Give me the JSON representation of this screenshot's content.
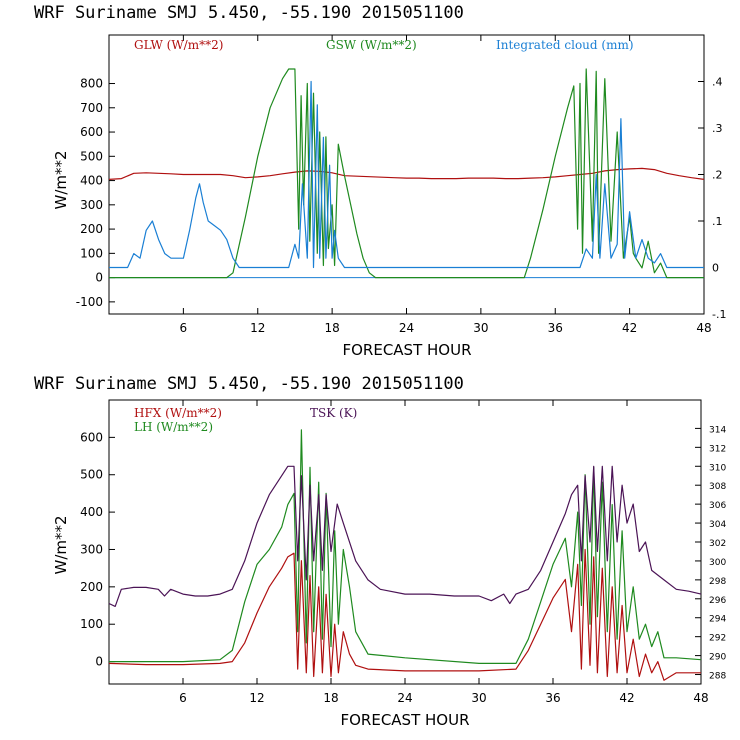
{
  "colors": {
    "red": "#b01010",
    "green": "#1f8a1f",
    "blue": "#1a7fd4",
    "purple": "#4b1456",
    "axis": "#000000"
  },
  "chart_data": [
    {
      "type": "line",
      "title": "WRF  Suriname SMJ   5.450, -55.190  2015051100",
      "xlabel": "FORECAST HOUR",
      "ylabel": "W/m**2",
      "xlim": [
        0,
        48
      ],
      "ylim": [
        -150,
        1000
      ],
      "y2lim": [
        -0.1,
        0.5
      ],
      "xticks": [
        6,
        12,
        18,
        24,
        30,
        36,
        42,
        48
      ],
      "yticks": [
        -100,
        0,
        100,
        200,
        300,
        400,
        500,
        600,
        700,
        800
      ],
      "y2ticks": [
        -0.1,
        0,
        0.1,
        0.2,
        0.3,
        0.4
      ],
      "y2ticklabels": [
        "-.1",
        "0",
        ".1",
        ".2",
        ".3",
        ".4"
      ],
      "series": [
        {
          "name": "GLW (W/m**2)",
          "color": "#b01010",
          "axis": "left",
          "x": [
            0,
            1,
            2,
            3,
            4,
            5,
            6,
            7,
            8,
            9,
            10,
            11,
            12,
            13,
            14,
            15,
            16,
            17,
            18,
            19,
            20,
            21,
            22,
            23,
            24,
            25,
            26,
            27,
            28,
            29,
            30,
            31,
            32,
            33,
            34,
            35,
            36,
            37,
            38,
            39,
            40,
            41,
            42,
            43,
            44,
            45,
            46,
            47,
            48
          ],
          "y": [
            405,
            408,
            430,
            432,
            430,
            428,
            425,
            425,
            425,
            425,
            420,
            412,
            415,
            420,
            428,
            435,
            440,
            438,
            432,
            420,
            418,
            416,
            414,
            412,
            410,
            410,
            408,
            408,
            408,
            410,
            410,
            410,
            408,
            408,
            410,
            412,
            415,
            420,
            425,
            430,
            440,
            445,
            448,
            450,
            445,
            430,
            420,
            412,
            405
          ]
        },
        {
          "name": "GSW (W/m**2)",
          "color": "#1f8a1f",
          "axis": "left",
          "x": [
            0,
            9.5,
            10,
            11,
            12,
            13,
            14,
            14.5,
            15,
            15.3,
            15.5,
            15.7,
            16,
            16.2,
            16.5,
            16.8,
            17,
            17.3,
            17.5,
            17.7,
            18,
            18.2,
            18.5,
            19,
            19.5,
            20,
            20.5,
            21,
            21.5,
            22,
            33,
            33.5,
            34,
            35,
            36,
            37,
            37.5,
            37.8,
            38,
            38.2,
            38.5,
            39,
            39.3,
            39.5,
            40,
            40.5,
            41,
            41.5,
            42,
            42.3,
            42.5,
            43,
            43.5,
            44,
            44.5,
            45,
            48
          ],
          "y": [
            0,
            0,
            20,
            250,
            500,
            700,
            820,
            860,
            860,
            200,
            750,
            300,
            800,
            150,
            760,
            100,
            600,
            50,
            580,
            120,
            300,
            50,
            550,
            420,
            300,
            180,
            80,
            20,
            0,
            0,
            0,
            0,
            80,
            280,
            500,
            700,
            790,
            200,
            800,
            100,
            860,
            150,
            850,
            100,
            820,
            150,
            600,
            80,
            250,
            100,
            80,
            40,
            150,
            20,
            60,
            0,
            0
          ]
        },
        {
          "name": "Integrated cloud (mm)",
          "color": "#1a7fd4",
          "axis": "right",
          "x": [
            0,
            1.5,
            2,
            2.5,
            3,
            3.5,
            4,
            4.5,
            5,
            5.5,
            6,
            6.5,
            7,
            7.3,
            7.6,
            8,
            8.5,
            9,
            9.5,
            10,
            10.5,
            11,
            14.5,
            15,
            15.3,
            15.6,
            16,
            16.3,
            16.5,
            16.8,
            17,
            17.3,
            17.5,
            17.8,
            18,
            18.2,
            18.5,
            19,
            19.5,
            20,
            20.5,
            21,
            38,
            38.5,
            39,
            39.3,
            39.6,
            40,
            40.5,
            41,
            41.3,
            41.6,
            42,
            42.5,
            43,
            43.5,
            44,
            44.5,
            45,
            48
          ],
          "y": [
            0,
            0,
            0.03,
            0.02,
            0.08,
            0.1,
            0.06,
            0.03,
            0.02,
            0.02,
            0.02,
            0.08,
            0.15,
            0.18,
            0.14,
            0.1,
            0.09,
            0.08,
            0.06,
            0.02,
            0.0,
            0.0,
            0.0,
            0.05,
            0.02,
            0.18,
            0.02,
            0.4,
            0.0,
            0.35,
            0.02,
            0.28,
            0.02,
            0.22,
            0.02,
            0.08,
            0.02,
            0.0,
            0.0,
            0.0,
            0.0,
            0.0,
            0.0,
            0.04,
            0.02,
            0.2,
            0.02,
            0.18,
            0.02,
            0.05,
            0.32,
            0.02,
            0.12,
            0.02,
            0.06,
            0.02,
            0.01,
            0.03,
            0.0,
            0.0
          ]
        }
      ],
      "legend": [
        "GLW (W/m**2)",
        "GSW (W/m**2)",
        "Integrated cloud (mm)"
      ]
    },
    {
      "type": "line",
      "title": "WRF  Suriname SMJ   5.450, -55.190  2015051100",
      "xlabel": "FORECAST HOUR",
      "ylabel": "W/m**2",
      "xlim": [
        0,
        48
      ],
      "ylim": [
        -60,
        700
      ],
      "y2lim": [
        287,
        317
      ],
      "xticks": [
        6,
        12,
        18,
        24,
        30,
        36,
        42,
        48
      ],
      "yticks": [
        0,
        100,
        200,
        300,
        400,
        500,
        600
      ],
      "y2ticks": [
        288,
        290,
        292,
        294,
        296,
        298,
        300,
        302,
        304,
        306,
        308,
        310,
        312,
        314
      ],
      "series": [
        {
          "name": "HFX (W/m**2)",
          "color": "#b01010",
          "axis": "left",
          "x": [
            0,
            3,
            6,
            9,
            10,
            11,
            12,
            13,
            14,
            14.5,
            15,
            15.3,
            15.6,
            16,
            16.3,
            16.6,
            17,
            17.3,
            17.6,
            18,
            18.3,
            18.6,
            19,
            19.5,
            20,
            21,
            24,
            30,
            33,
            34,
            35,
            36,
            37,
            37.5,
            38,
            38.3,
            38.6,
            39,
            39.3,
            39.6,
            40,
            40.4,
            40.8,
            41.2,
            41.6,
            42,
            42.5,
            43,
            43.5,
            44,
            44.5,
            45,
            46,
            48
          ],
          "y": [
            -5,
            -8,
            -8,
            -5,
            0,
            50,
            130,
            200,
            250,
            280,
            290,
            -20,
            270,
            -30,
            230,
            -40,
            200,
            -30,
            180,
            -40,
            100,
            -30,
            80,
            20,
            -10,
            -20,
            -25,
            -25,
            -20,
            30,
            100,
            170,
            220,
            80,
            260,
            -20,
            300,
            -10,
            280,
            -30,
            250,
            -40,
            200,
            -30,
            150,
            -30,
            60,
            -40,
            20,
            -30,
            0,
            -50,
            -30,
            -30
          ]
        },
        {
          "name": "LH  (W/m**2)",
          "color": "#1f8a1f",
          "axis": "left",
          "x": [
            0,
            3,
            6,
            9,
            10,
            11,
            12,
            13,
            14,
            14.5,
            15,
            15.3,
            15.6,
            16,
            16.3,
            16.6,
            17,
            17.3,
            17.6,
            18,
            18.3,
            18.6,
            19,
            19.5,
            20,
            21,
            24,
            30,
            33,
            34,
            35,
            36,
            37,
            37.5,
            38,
            38.3,
            38.6,
            39,
            39.3,
            39.6,
            40,
            40.4,
            40.8,
            41.2,
            41.6,
            42,
            42.5,
            43,
            43.5,
            44,
            44.5,
            45,
            46,
            48
          ],
          "y": [
            0,
            0,
            0,
            5,
            30,
            160,
            260,
            300,
            360,
            420,
            450,
            80,
            620,
            50,
            520,
            80,
            480,
            60,
            450,
            40,
            350,
            100,
            300,
            200,
            80,
            20,
            10,
            -5,
            -5,
            60,
            160,
            260,
            330,
            200,
            400,
            150,
            500,
            100,
            520,
            120,
            480,
            80,
            420,
            60,
            350,
            80,
            200,
            60,
            100,
            40,
            80,
            10,
            10,
            5
          ]
        },
        {
          "name": "TSK (K)",
          "color": "#4b1456",
          "axis": "right",
          "x": [
            0,
            0.5,
            1,
            2,
            3,
            4,
            4.5,
            5,
            6,
            7,
            8,
            9,
            10,
            11,
            12,
            13,
            14,
            14.5,
            15,
            15.3,
            15.6,
            16,
            16.3,
            16.6,
            17,
            17.3,
            17.6,
            18,
            18.5,
            19,
            20,
            21,
            22,
            24,
            26,
            28,
            30,
            31,
            32,
            32.5,
            33,
            34,
            35,
            36,
            37,
            37.5,
            38,
            38.3,
            38.6,
            39,
            39.3,
            39.6,
            40,
            40.4,
            40.8,
            41.2,
            41.6,
            42,
            42.5,
            43,
            43.5,
            44,
            45,
            46,
            47,
            48
          ],
          "y": [
            295.5,
            295.2,
            297,
            297.2,
            297.2,
            297,
            296.3,
            297,
            296.5,
            296.3,
            296.3,
            296.5,
            297,
            300,
            304,
            307,
            309,
            310,
            310,
            300,
            309,
            298,
            308,
            300,
            307,
            299,
            307,
            301,
            306,
            304,
            300,
            298,
            297,
            296.5,
            296.5,
            296.3,
            296.3,
            295.8,
            296.5,
            295.5,
            296.5,
            297,
            299,
            302,
            305,
            307,
            308,
            300,
            309,
            302,
            310,
            301,
            310,
            300,
            310,
            302,
            308,
            304,
            306,
            301,
            302,
            299,
            298,
            297,
            296.8,
            296.5
          ]
        }
      ],
      "legend": [
        "HFX (W/m**2)",
        "LH  (W/m**2)",
        "TSK (K)"
      ]
    }
  ]
}
